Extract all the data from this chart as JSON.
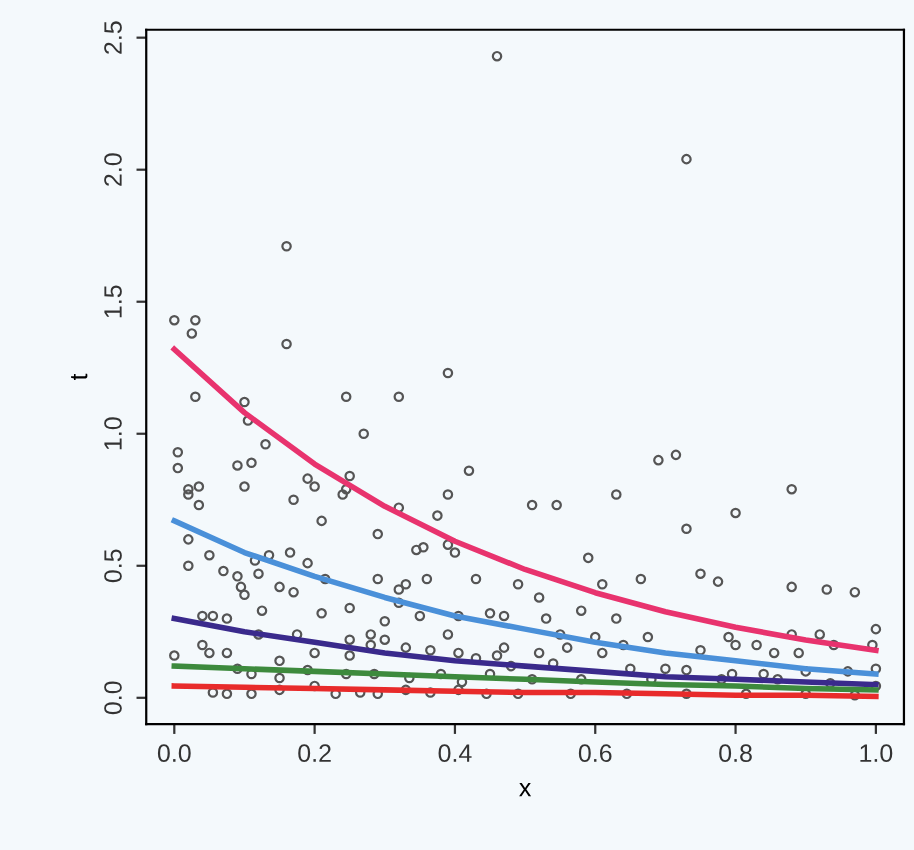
{
  "chart_data": {
    "type": "scatter",
    "xlabel": "x",
    "ylabel": "t",
    "xlim": [
      -0.04,
      1.04
    ],
    "ylim": [
      -0.1,
      2.53
    ],
    "xticks": [
      {
        "value": 0,
        "label": "0.0"
      },
      {
        "value": 0.2,
        "label": "0.2"
      },
      {
        "value": 0.4,
        "label": "0.4"
      },
      {
        "value": 0.6,
        "label": "0.6"
      },
      {
        "value": 0.8,
        "label": "0.8"
      },
      {
        "value": 1,
        "label": "1.0"
      }
    ],
    "yticks": [
      {
        "value": 0,
        "label": "0.0"
      },
      {
        "value": 0.5,
        "label": "0.5"
      },
      {
        "value": 1,
        "label": "1.0"
      },
      {
        "value": 1.5,
        "label": "1.5"
      },
      {
        "value": 2,
        "label": "2.0"
      },
      {
        "value": 2.5,
        "label": "2.5"
      }
    ],
    "grid": false,
    "series": [
      {
        "color": "#555555",
        "marker": "circle",
        "x": [
          0.0,
          0.03,
          0.025,
          0.16,
          0.16,
          0.03,
          0.1,
          0.245,
          0.32,
          0.39,
          0.27,
          0.105,
          0.46,
          0.73,
          0.13,
          0.005,
          0.005,
          0.09,
          0.11,
          0.035,
          0.02,
          0.02,
          0.035,
          0.1,
          0.19,
          0.2,
          0.17,
          0.24,
          0.245,
          0.25,
          0.21,
          0.42,
          0.39,
          0.375,
          0.32,
          0.29,
          0.02,
          0.02,
          0.05,
          0.07,
          0.09,
          0.095,
          0.1,
          0.115,
          0.12,
          0.135,
          0.165,
          0.15,
          0.17,
          0.19,
          0.215,
          0.21,
          0.25,
          0.29,
          0.32,
          0.32,
          0.33,
          0.345,
          0.355,
          0.36,
          0.39,
          0.4,
          0.43,
          0.45,
          0.35,
          0.405,
          0.39,
          0.3,
          0.28,
          0.175,
          0.125,
          0.04,
          0.055,
          0.075,
          0.04,
          0.075,
          0.0,
          0.05,
          0.12,
          0.15,
          0.2,
          0.25,
          0.3,
          0.33,
          0.365,
          0.405,
          0.43,
          0.46,
          0.47,
          0.055,
          0.075,
          0.11,
          0.15,
          0.2,
          0.23,
          0.265,
          0.29,
          0.33,
          0.365,
          0.405,
          0.445,
          0.09,
          0.11,
          0.15,
          0.19,
          0.245,
          0.285,
          0.335,
          0.38,
          0.41,
          0.45,
          0.28,
          0.25,
          0.51,
          0.545,
          0.63,
          0.69,
          0.715,
          0.73,
          0.8,
          0.88,
          0.59,
          0.49,
          0.52,
          0.61,
          0.665,
          0.75,
          0.775,
          0.88,
          0.93,
          0.97,
          1.0,
          0.58,
          0.63,
          0.53,
          0.675,
          0.6,
          0.55,
          0.79,
          0.8,
          0.88,
          0.92,
          0.94,
          0.995,
          0.89,
          0.855,
          0.83,
          0.75,
          0.64,
          0.61,
          0.56,
          0.52,
          0.47,
          0.48,
          0.54,
          0.65,
          0.7,
          0.73,
          0.795,
          0.84,
          0.9,
          0.96,
          1.0,
          0.51,
          0.58,
          0.68,
          0.78,
          0.86,
          0.935,
          1.0,
          0.49,
          0.565,
          0.645,
          0.73,
          0.815,
          0.9,
          0.97
        ],
        "values": [
          1.43,
          1.43,
          1.38,
          1.71,
          1.34,
          1.14,
          1.12,
          1.14,
          1.14,
          1.23,
          1.0,
          1.05,
          2.43,
          2.04,
          0.96,
          0.93,
          0.87,
          0.88,
          0.89,
          0.8,
          0.79,
          0.77,
          0.73,
          0.8,
          0.83,
          0.8,
          0.75,
          0.77,
          0.79,
          0.84,
          0.67,
          0.86,
          0.77,
          0.69,
          0.72,
          0.62,
          0.6,
          0.5,
          0.54,
          0.48,
          0.46,
          0.42,
          0.39,
          0.52,
          0.47,
          0.54,
          0.55,
          0.42,
          0.4,
          0.51,
          0.45,
          0.32,
          0.34,
          0.45,
          0.41,
          0.36,
          0.43,
          0.56,
          0.57,
          0.45,
          0.58,
          0.55,
          0.45,
          0.32,
          0.31,
          0.31,
          0.24,
          0.29,
          0.24,
          0.24,
          0.33,
          0.31,
          0.31,
          0.3,
          0.2,
          0.17,
          0.16,
          0.17,
          0.24,
          0.14,
          0.17,
          0.22,
          0.22,
          0.19,
          0.18,
          0.17,
          0.15,
          0.16,
          0.31,
          0.02,
          0.015,
          0.015,
          0.03,
          0.045,
          0.015,
          0.02,
          0.015,
          0.03,
          0.02,
          0.03,
          0.015,
          0.11,
          0.09,
          0.075,
          0.105,
          0.09,
          0.09,
          0.075,
          0.09,
          0.06,
          0.09,
          0.2,
          0.16,
          0.73,
          0.73,
          0.77,
          0.9,
          0.92,
          0.64,
          0.7,
          0.79,
          0.53,
          0.43,
          0.38,
          0.43,
          0.45,
          0.47,
          0.44,
          0.42,
          0.41,
          0.4,
          0.26,
          0.33,
          0.3,
          0.3,
          0.23,
          0.23,
          0.24,
          0.23,
          0.2,
          0.24,
          0.24,
          0.2,
          0.2,
          0.17,
          0.17,
          0.2,
          0.18,
          0.2,
          0.17,
          0.19,
          0.17,
          0.19,
          0.12,
          0.13,
          0.11,
          0.11,
          0.105,
          0.09,
          0.09,
          0.1,
          0.1,
          0.11,
          0.07,
          0.07,
          0.07,
          0.07,
          0.07,
          0.055,
          0.045,
          0.015,
          0.015,
          0.015,
          0.015,
          0.015,
          0.015,
          0.01
        ]
      },
      {
        "type": "line",
        "color": "#e8336e",
        "marker": "none",
        "x": [
          0,
          0.1,
          0.2,
          0.3,
          0.4,
          0.5,
          0.6,
          0.7,
          0.8,
          0.9,
          1.0
        ],
        "values": [
          1.32,
          1.08,
          0.885,
          0.725,
          0.593,
          0.486,
          0.398,
          0.326,
          0.267,
          0.219,
          0.18
        ]
      },
      {
        "type": "line",
        "color": "#4a90d9",
        "marker": "none",
        "x": [
          0,
          0.1,
          0.2,
          0.3,
          0.4,
          0.5,
          0.6,
          0.7,
          0.8,
          0.9,
          1.0
        ],
        "values": [
          0.67,
          0.55,
          0.46,
          0.38,
          0.31,
          0.26,
          0.21,
          0.17,
          0.14,
          0.11,
          0.09
        ]
      },
      {
        "type": "line",
        "color": "#3a2a8c",
        "marker": "none",
        "x": [
          0,
          0.1,
          0.2,
          0.3,
          0.4,
          0.5,
          0.6,
          0.7,
          0.8,
          0.9,
          1.0
        ],
        "values": [
          0.3,
          0.25,
          0.21,
          0.17,
          0.14,
          0.12,
          0.1,
          0.08,
          0.07,
          0.06,
          0.05
        ]
      },
      {
        "type": "line",
        "color": "#3d8a3d",
        "marker": "none",
        "x": [
          0,
          0.1,
          0.2,
          0.3,
          0.4,
          0.5,
          0.6,
          0.7,
          0.8,
          0.9,
          1.0
        ],
        "values": [
          0.12,
          0.11,
          0.1,
          0.09,
          0.08,
          0.07,
          0.06,
          0.05,
          0.045,
          0.035,
          0.03
        ]
      },
      {
        "type": "line",
        "color": "#e82b2b",
        "marker": "none",
        "x": [
          0,
          0.1,
          0.2,
          0.3,
          0.4,
          0.5,
          0.6,
          0.7,
          0.8,
          0.9,
          1.0
        ],
        "values": [
          0.045,
          0.04,
          0.035,
          0.03,
          0.025,
          0.02,
          0.02,
          0.015,
          0.01,
          0.01,
          0.005
        ]
      }
    ]
  }
}
